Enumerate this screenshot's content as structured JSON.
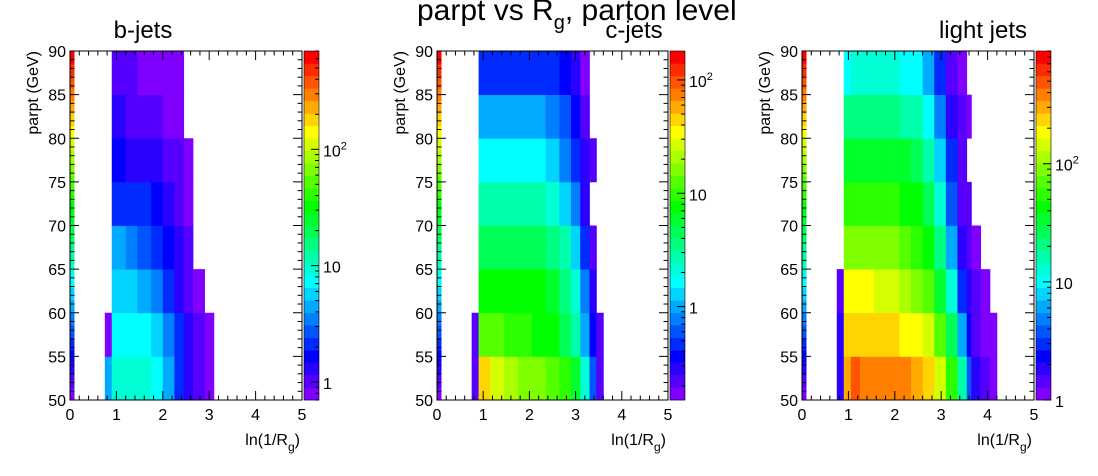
{
  "figure": {
    "title_main": "parpt vs R",
    "title_sub": "g",
    "title_tail": ", parton level"
  },
  "chart_data": [
    {
      "type": "heatmap",
      "title": "b-jets",
      "xlabel": "ln(1/R",
      "xlabel_sub": "g",
      "ylabel": "parpt (GeV)",
      "xlim": [
        0,
        5
      ],
      "ylim": [
        50,
        90
      ],
      "x_ticks": [
        "0",
        "1",
        "2",
        "3",
        "4",
        "5"
      ],
      "y_ticks": [
        "50",
        "55",
        "60",
        "65",
        "70",
        "75",
        "80",
        "85",
        "90"
      ],
      "z_scale": "log",
      "z_ticks": [
        {
          "base": "1"
        },
        {
          "base": "10"
        },
        {
          "base": "10",
          "exp": "2"
        }
      ],
      "z_range": [
        0.7,
        700
      ],
      "x_edges": [
        0.75,
        0.9,
        1.2,
        1.45,
        1.75,
        2.0,
        2.25,
        2.45,
        2.65,
        2.9,
        3.1
      ],
      "y_edges": [
        50,
        55,
        60,
        65,
        70,
        75,
        80,
        85,
        90
      ],
      "values": [
        [
          5,
          10,
          9,
          9,
          7,
          4,
          2.4,
          1.4,
          1.0,
          0.85
        ],
        [
          0.8,
          8,
          8,
          7,
          6,
          3.5,
          2.0,
          1.2,
          0.9,
          0.8
        ],
        [
          null,
          6,
          6,
          5,
          3.5,
          2.2,
          1.4,
          1.0,
          0.85,
          null
        ],
        [
          null,
          4,
          3.5,
          2.6,
          2.2,
          1.6,
          1.2,
          0.9,
          null,
          null
        ],
        [
          null,
          2.4,
          2.2,
          2.0,
          1.6,
          1.2,
          1.0,
          0.85,
          null,
          null
        ],
        [
          null,
          1.6,
          1.4,
          1.3,
          1.15,
          1.0,
          0.9,
          0.8,
          null,
          null
        ],
        [
          null,
          1.2,
          1.0,
          1.0,
          0.9,
          0.85,
          0.8,
          null,
          null,
          null
        ],
        [
          null,
          0.9,
          0.9,
          0.85,
          0.85,
          0.8,
          0.8,
          null,
          null,
          null
        ]
      ]
    },
    {
      "type": "heatmap",
      "title": "c-jets",
      "xlabel": "ln(1/R",
      "xlabel_sub": "g",
      "ylabel": "parpt (GeV)",
      "xlim": [
        0,
        5
      ],
      "ylim": [
        50,
        90
      ],
      "x_ticks": [
        "0",
        "1",
        "2",
        "3",
        "4",
        "5"
      ],
      "y_ticks": [
        "50",
        "55",
        "60",
        "65",
        "70",
        "75",
        "80",
        "85",
        "90"
      ],
      "z_scale": "log",
      "z_ticks": [
        {
          "base": "1"
        },
        {
          "base": "10"
        },
        {
          "base": "10",
          "exp": "2"
        }
      ],
      "z_range": [
        0.15,
        180
      ],
      "x_edges": [
        0.75,
        0.9,
        1.15,
        1.45,
        1.75,
        2.05,
        2.35,
        2.65,
        2.9,
        3.1,
        3.3,
        3.45,
        3.6
      ],
      "y_edges": [
        50,
        55,
        60,
        65,
        70,
        75,
        80,
        85,
        90
      ],
      "values": [
        [
          0.2,
          40,
          25,
          20,
          18,
          15,
          14,
          10,
          6,
          2.0,
          0.6,
          0.22
        ],
        [
          0.2,
          12,
          12,
          11,
          10,
          8,
          7,
          5,
          3.0,
          1.0,
          0.4,
          0.2
        ],
        [
          null,
          7,
          8,
          8,
          7,
          7,
          6,
          4,
          2.0,
          0.7,
          0.3,
          null
        ],
        [
          null,
          5,
          5,
          5,
          5,
          4.5,
          3.5,
          2.5,
          1.2,
          0.5,
          0.2,
          null
        ],
        [
          null,
          2.5,
          2.5,
          2.7,
          2.5,
          2.5,
          2.0,
          1.2,
          0.7,
          0.3,
          null,
          null
        ],
        [
          null,
          1.5,
          1.5,
          1.6,
          1.6,
          1.5,
          1.2,
          0.8,
          0.5,
          0.25,
          0.2,
          null
        ],
        [
          null,
          0.9,
          0.9,
          0.9,
          0.9,
          0.9,
          0.75,
          0.6,
          0.4,
          0.2,
          null,
          null
        ],
        [
          null,
          0.5,
          0.5,
          0.5,
          0.5,
          0.5,
          0.45,
          0.35,
          0.25,
          0.18,
          null,
          null
        ]
      ]
    },
    {
      "type": "heatmap",
      "title": "light jets",
      "xlabel": "ln(1/R",
      "xlabel_sub": "g",
      "ylabel": "parpt (GeV)",
      "xlim": [
        0,
        5
      ],
      "ylim": [
        50,
        90
      ],
      "x_ticks": [
        "0",
        "1",
        "2",
        "3",
        "4",
        "5"
      ],
      "y_ticks": [
        "50",
        "55",
        "60",
        "65",
        "70",
        "75",
        "80",
        "85",
        "90"
      ],
      "z_scale": "log",
      "z_ticks": [
        {
          "base": "1"
        },
        {
          "base": "10"
        },
        {
          "base": "10",
          "exp": "2"
        }
      ],
      "z_range": [
        1,
        900
      ],
      "x_edges": [
        0.75,
        0.9,
        1.05,
        1.25,
        1.55,
        1.85,
        2.1,
        2.35,
        2.6,
        2.85,
        3.1,
        3.35,
        3.55,
        3.65,
        3.85,
        4.05,
        4.2
      ],
      "y_edges": [
        50,
        55,
        60,
        65,
        70,
        75,
        80,
        85,
        90
      ],
      "values": [
        [
          2.0,
          280,
          500,
          380,
          380,
          380,
          350,
          300,
          250,
          150,
          60,
          15,
          4,
          2,
          1.5,
          1.2
        ],
        [
          1.8,
          220,
          260,
          260,
          250,
          230,
          200,
          180,
          130,
          70,
          25,
          6,
          2.5,
          1.5,
          1.2,
          1.1
        ],
        [
          1.5,
          180,
          170,
          170,
          150,
          140,
          120,
          100,
          70,
          35,
          12,
          3,
          1.8,
          1.4,
          1.1,
          null
        ],
        [
          null,
          100,
          100,
          100,
          95,
          85,
          70,
          60,
          40,
          20,
          6,
          2,
          1.5,
          1.2,
          null,
          null
        ],
        [
          null,
          60,
          60,
          60,
          55,
          50,
          45,
          40,
          25,
          12,
          4,
          1.6,
          1.3,
          null,
          null,
          null
        ],
        [
          null,
          35,
          35,
          35,
          35,
          30,
          30,
          25,
          15,
          7,
          3,
          1.4,
          null,
          null,
          null,
          null
        ],
        [
          null,
          20,
          20,
          20,
          20,
          20,
          18,
          15,
          10,
          5,
          2,
          1.3,
          1.1,
          null,
          null,
          null
        ],
        [
          null,
          10,
          12,
          12,
          12,
          12,
          10,
          9,
          6,
          3,
          1.6,
          1.2,
          null,
          null,
          null,
          null
        ]
      ]
    }
  ]
}
